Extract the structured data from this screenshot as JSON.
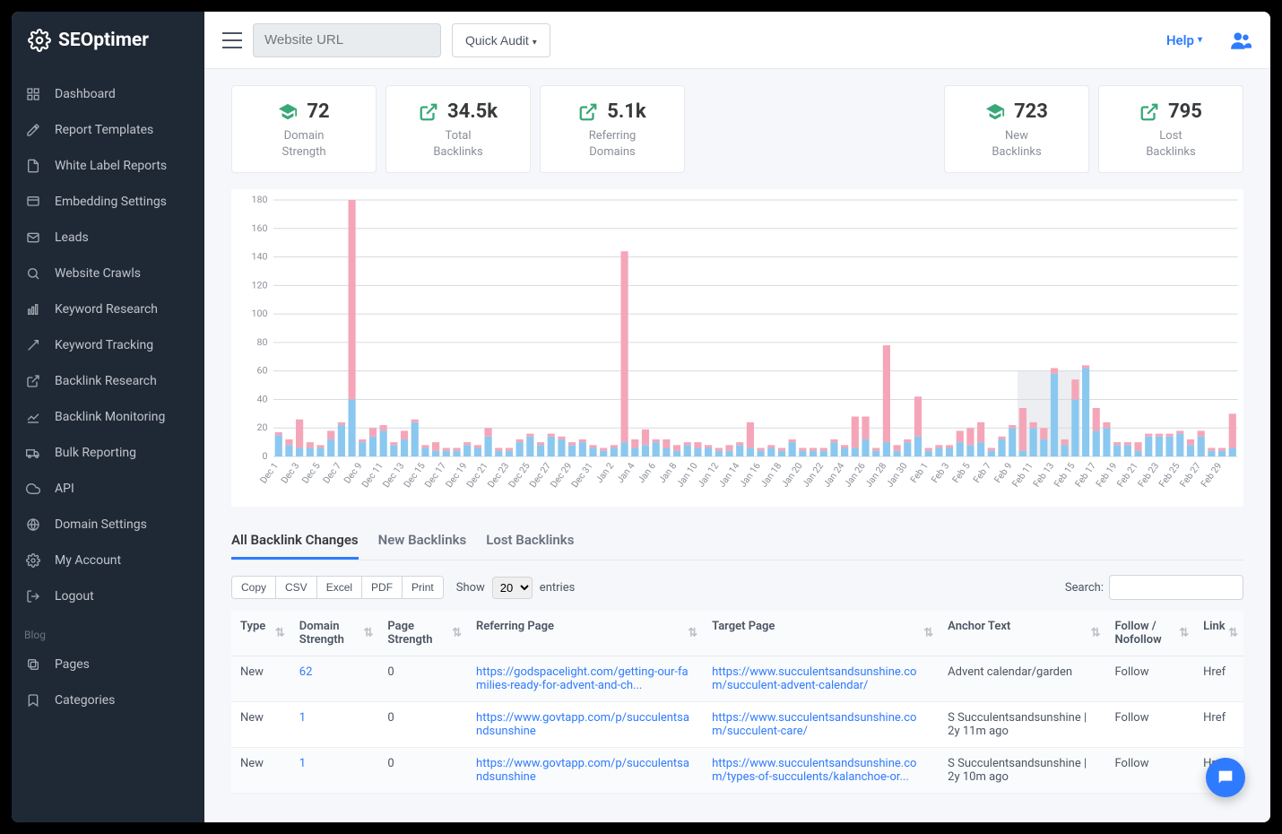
{
  "brand": "SEOptimer",
  "sidebar": {
    "items": [
      {
        "label": "Dashboard",
        "icon": "grid"
      },
      {
        "label": "Report Templates",
        "icon": "edit"
      },
      {
        "label": "White Label Reports",
        "icon": "file"
      },
      {
        "label": "Embedding Settings",
        "icon": "embed"
      },
      {
        "label": "Leads",
        "icon": "mail"
      },
      {
        "label": "Website Crawls",
        "icon": "search"
      },
      {
        "label": "Keyword Research",
        "icon": "bars"
      },
      {
        "label": "Keyword Tracking",
        "icon": "target"
      },
      {
        "label": "Backlink Research",
        "icon": "external"
      },
      {
        "label": "Backlink Monitoring",
        "icon": "chartline"
      },
      {
        "label": "Bulk Reporting",
        "icon": "truck"
      },
      {
        "label": "API",
        "icon": "cloud"
      },
      {
        "label": "Domain Settings",
        "icon": "globe"
      },
      {
        "label": "My Account",
        "icon": "gear"
      },
      {
        "label": "Logout",
        "icon": "logout"
      }
    ],
    "blog_label": "Blog",
    "blog_items": [
      {
        "label": "Pages",
        "icon": "copy"
      },
      {
        "label": "Categories",
        "icon": "bookmark"
      }
    ]
  },
  "topbar": {
    "url_placeholder": "Website URL",
    "quick_audit_label": "Quick Audit",
    "help_label": "Help"
  },
  "stats": [
    {
      "value": "72",
      "label": "Domain\nStrength",
      "icon": "grad"
    },
    {
      "value": "34.5k",
      "label": "Total\nBacklinks",
      "icon": "ext"
    },
    {
      "value": "5.1k",
      "label": "Referring\nDomains",
      "icon": "ext"
    },
    {
      "value": "723",
      "label": "New\nBacklinks",
      "icon": "grad"
    },
    {
      "value": "795",
      "label": "Lost\nBacklinks",
      "icon": "ext"
    }
  ],
  "chart": {
    "ylim": [
      0,
      180
    ],
    "ytick_step": 20,
    "bar_blue": "#8bc8f0",
    "bar_pink": "#f4a6b8",
    "axis_color": "#d6dbe0",
    "text_color": "#8a8f98",
    "font_size": 10,
    "highlight_box": {
      "start": 71,
      "end": 77,
      "color": "#e4e7eb"
    },
    "labels": [
      "Dec 1",
      "Dec 3",
      "Dec 5",
      "Dec 7",
      "Dec 9",
      "Dec 11",
      "Dec 13",
      "Dec 15",
      "Dec 17",
      "Dec 19",
      "Dec 21",
      "Dec 23",
      "Dec 25",
      "Dec 27",
      "Dec 29",
      "Dec 31",
      "Jan 2",
      "Jan 4",
      "Jan 6",
      "Jan 8",
      "Jan 10",
      "Jan 12",
      "Jan 14",
      "Jan 16",
      "Jan 18",
      "Jan 20",
      "Jan 22",
      "Jan 24",
      "Jan 26",
      "Jan 28",
      "Jan 30",
      "Feb 1",
      "Feb 3",
      "Feb 5",
      "Feb 7",
      "Feb 9",
      "Feb 11",
      "Feb 13",
      "Feb 15",
      "Feb 17",
      "Feb 19",
      "Feb 21",
      "Feb 23",
      "Feb 25",
      "Feb 27",
      "Feb 29"
    ],
    "data": [
      {
        "b": 15,
        "p": 2
      },
      {
        "b": 8,
        "p": 4
      },
      {
        "b": 6,
        "p": 20
      },
      {
        "b": 6,
        "p": 4
      },
      {
        "b": 6,
        "p": 2
      },
      {
        "b": 12,
        "p": 6
      },
      {
        "b": 22,
        "p": 2
      },
      {
        "b": 40,
        "p": 140
      },
      {
        "b": 10,
        "p": 2
      },
      {
        "b": 14,
        "p": 6
      },
      {
        "b": 18,
        "p": 4
      },
      {
        "b": 8,
        "p": 2
      },
      {
        "b": 12,
        "p": 6
      },
      {
        "b": 24,
        "p": 2
      },
      {
        "b": 6,
        "p": 2
      },
      {
        "b": 4,
        "p": 6
      },
      {
        "b": 4,
        "p": 2
      },
      {
        "b": 4,
        "p": 2
      },
      {
        "b": 8,
        "p": 2
      },
      {
        "b": 6,
        "p": 2
      },
      {
        "b": 14,
        "p": 6
      },
      {
        "b": 4,
        "p": 2
      },
      {
        "b": 4,
        "p": 2
      },
      {
        "b": 10,
        "p": 2
      },
      {
        "b": 14,
        "p": 2
      },
      {
        "b": 8,
        "p": 2
      },
      {
        "b": 14,
        "p": 2
      },
      {
        "b": 12,
        "p": 2
      },
      {
        "b": 8,
        "p": 2
      },
      {
        "b": 10,
        "p": 2
      },
      {
        "b": 6,
        "p": 2
      },
      {
        "b": 4,
        "p": 2
      },
      {
        "b": 6,
        "p": 2
      },
      {
        "b": 10,
        "p": 134
      },
      {
        "b": 6,
        "p": 6
      },
      {
        "b": 8,
        "p": 11
      },
      {
        "b": 10,
        "p": 2
      },
      {
        "b": 6,
        "p": 6
      },
      {
        "b": 4,
        "p": 4
      },
      {
        "b": 8,
        "p": 2
      },
      {
        "b": 6,
        "p": 4
      },
      {
        "b": 6,
        "p": 2
      },
      {
        "b": 4,
        "p": 2
      },
      {
        "b": 4,
        "p": 4
      },
      {
        "b": 8,
        "p": 2
      },
      {
        "b": 6,
        "p": 18
      },
      {
        "b": 4,
        "p": 2
      },
      {
        "b": 6,
        "p": 2
      },
      {
        "b": 4,
        "p": 2
      },
      {
        "b": 10,
        "p": 2
      },
      {
        "b": 4,
        "p": 2
      },
      {
        "b": 4,
        "p": 2
      },
      {
        "b": 4,
        "p": 2
      },
      {
        "b": 10,
        "p": 2
      },
      {
        "b": 6,
        "p": 2
      },
      {
        "b": 6,
        "p": 22
      },
      {
        "b": 12,
        "p": 16
      },
      {
        "b": 4,
        "p": 2
      },
      {
        "b": 10,
        "p": 68
      },
      {
        "b": 4,
        "p": 4
      },
      {
        "b": 10,
        "p": 2
      },
      {
        "b": 14,
        "p": 28
      },
      {
        "b": 4,
        "p": 2
      },
      {
        "b": 6,
        "p": 2
      },
      {
        "b": 6,
        "p": 2
      },
      {
        "b": 10,
        "p": 8
      },
      {
        "b": 8,
        "p": 12
      },
      {
        "b": 10,
        "p": 14
      },
      {
        "b": 4,
        "p": 2
      },
      {
        "b": 12,
        "p": 2
      },
      {
        "b": 20,
        "p": 2
      },
      {
        "b": 4,
        "p": 30
      },
      {
        "b": 20,
        "p": 4
      },
      {
        "b": 12,
        "p": 8
      },
      {
        "b": 58,
        "p": 4
      },
      {
        "b": 8,
        "p": 4
      },
      {
        "b": 40,
        "p": 14
      },
      {
        "b": 62,
        "p": 2
      },
      {
        "b": 18,
        "p": 16
      },
      {
        "b": 20,
        "p": 4
      },
      {
        "b": 8,
        "p": 2
      },
      {
        "b": 8,
        "p": 2
      },
      {
        "b": 4,
        "p": 6
      },
      {
        "b": 14,
        "p": 2
      },
      {
        "b": 14,
        "p": 2
      },
      {
        "b": 14,
        "p": 2
      },
      {
        "b": 16,
        "p": 2
      },
      {
        "b": 8,
        "p": 4
      },
      {
        "b": 14,
        "p": 4
      },
      {
        "b": 4,
        "p": 2
      },
      {
        "b": 4,
        "p": 2
      },
      {
        "b": 6,
        "p": 24
      }
    ]
  },
  "tabs": [
    {
      "label": "All Backlink Changes",
      "active": true
    },
    {
      "label": "New Backlinks",
      "active": false
    },
    {
      "label": "Lost Backlinks",
      "active": false
    }
  ],
  "dt": {
    "buttons": [
      "Copy",
      "CSV",
      "Excel",
      "PDF",
      "Print"
    ],
    "show_label": "Show",
    "entries_label": "entries",
    "entries_value": "20",
    "search_label": "Search:",
    "columns": [
      "Type",
      "Domain Strength",
      "Page Strength",
      "Referring Page",
      "Target Page",
      "Anchor Text",
      "Follow / Nofollow",
      "Link"
    ],
    "rows": [
      {
        "type": "New",
        "ds": "62",
        "ps": "0",
        "ref": "https://godspacelight.com/getting-our-families-ready-for-advent-and-ch...",
        "tgt": "https://www.succulentsandsunshine.com/succulent-advent-calendar/",
        "anchor": "Advent calendar/garden",
        "follow": "Follow",
        "link": "Href"
      },
      {
        "type": "New",
        "ds": "1",
        "ps": "0",
        "ref": "https://www.govtapp.com/p/succulentsandsunshine",
        "tgt": "https://www.succulentsandsunshine.com/succulent-care/",
        "anchor": "S Succulentsandsunshine | 2y 11m ago",
        "follow": "Follow",
        "link": "Href"
      },
      {
        "type": "New",
        "ds": "1",
        "ps": "0",
        "ref": "https://www.govtapp.com/p/succulentsandsunshine",
        "tgt": "https://www.succulentsandsunshine.com/types-of-succulents/kalanchoe-or...",
        "anchor": "S Succulentsandsunshine | 2y 10m ago",
        "follow": "Follow",
        "link": "Href"
      }
    ]
  }
}
